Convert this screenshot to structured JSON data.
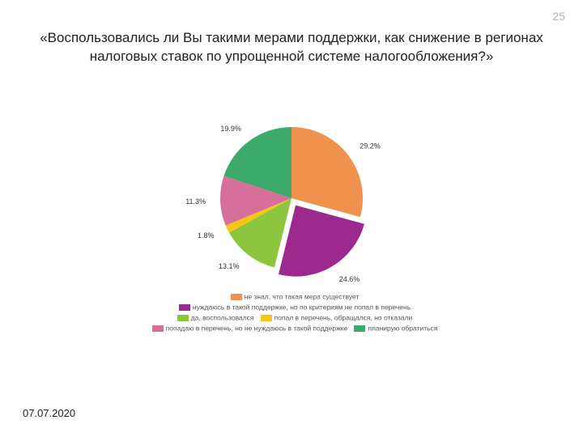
{
  "page_number": "25",
  "title": "«Воспользовались ли Вы такими мерами поддержки, как снижение в регионах налоговых ставок по упрощенной системе налогообложения?»",
  "footer_date": "07.07.2020",
  "pie_chart": {
    "type": "pie",
    "background_color": "#ffffff",
    "radius": 88,
    "title_fontsize": 17,
    "label_fontsize": 9,
    "legend_fontsize": 8.5,
    "legend_text_color": "#555555",
    "label_text_color": "#333333",
    "start_angle_deg": -90,
    "pull_out_slice_index": 1,
    "pull_out_distance": 10,
    "slices": [
      {
        "label": "не знал, что такая мера существует",
        "value": 29.2,
        "display": "29.2%",
        "color": "#f0914e"
      },
      {
        "label": "нуждаюсь в такой поддержке, но по критериям не попал в перечень",
        "value": 24.6,
        "display": "24.6%",
        "color": "#9c2a8e"
      },
      {
        "label": "да, воспользовался",
        "value": 13.1,
        "display": "13.1%",
        "color": "#8cc63f"
      },
      {
        "label": "попал в перечень, обращался, но отказали",
        "value": 1.8,
        "display": "1.8%",
        "color": "#f5c518"
      },
      {
        "label": "попадаю в перечень, но не нуждаюсь в такой поддержке",
        "value": 11.3,
        "display": "11.3%",
        "color": "#d6709a"
      },
      {
        "label": "планирую обратиться",
        "value": 19.9,
        "display": "19.9%",
        "color": "#3caa6b"
      }
    ],
    "legend_rows": [
      [
        0
      ],
      [
        1
      ],
      [
        2,
        3
      ],
      [
        4,
        5
      ]
    ]
  }
}
